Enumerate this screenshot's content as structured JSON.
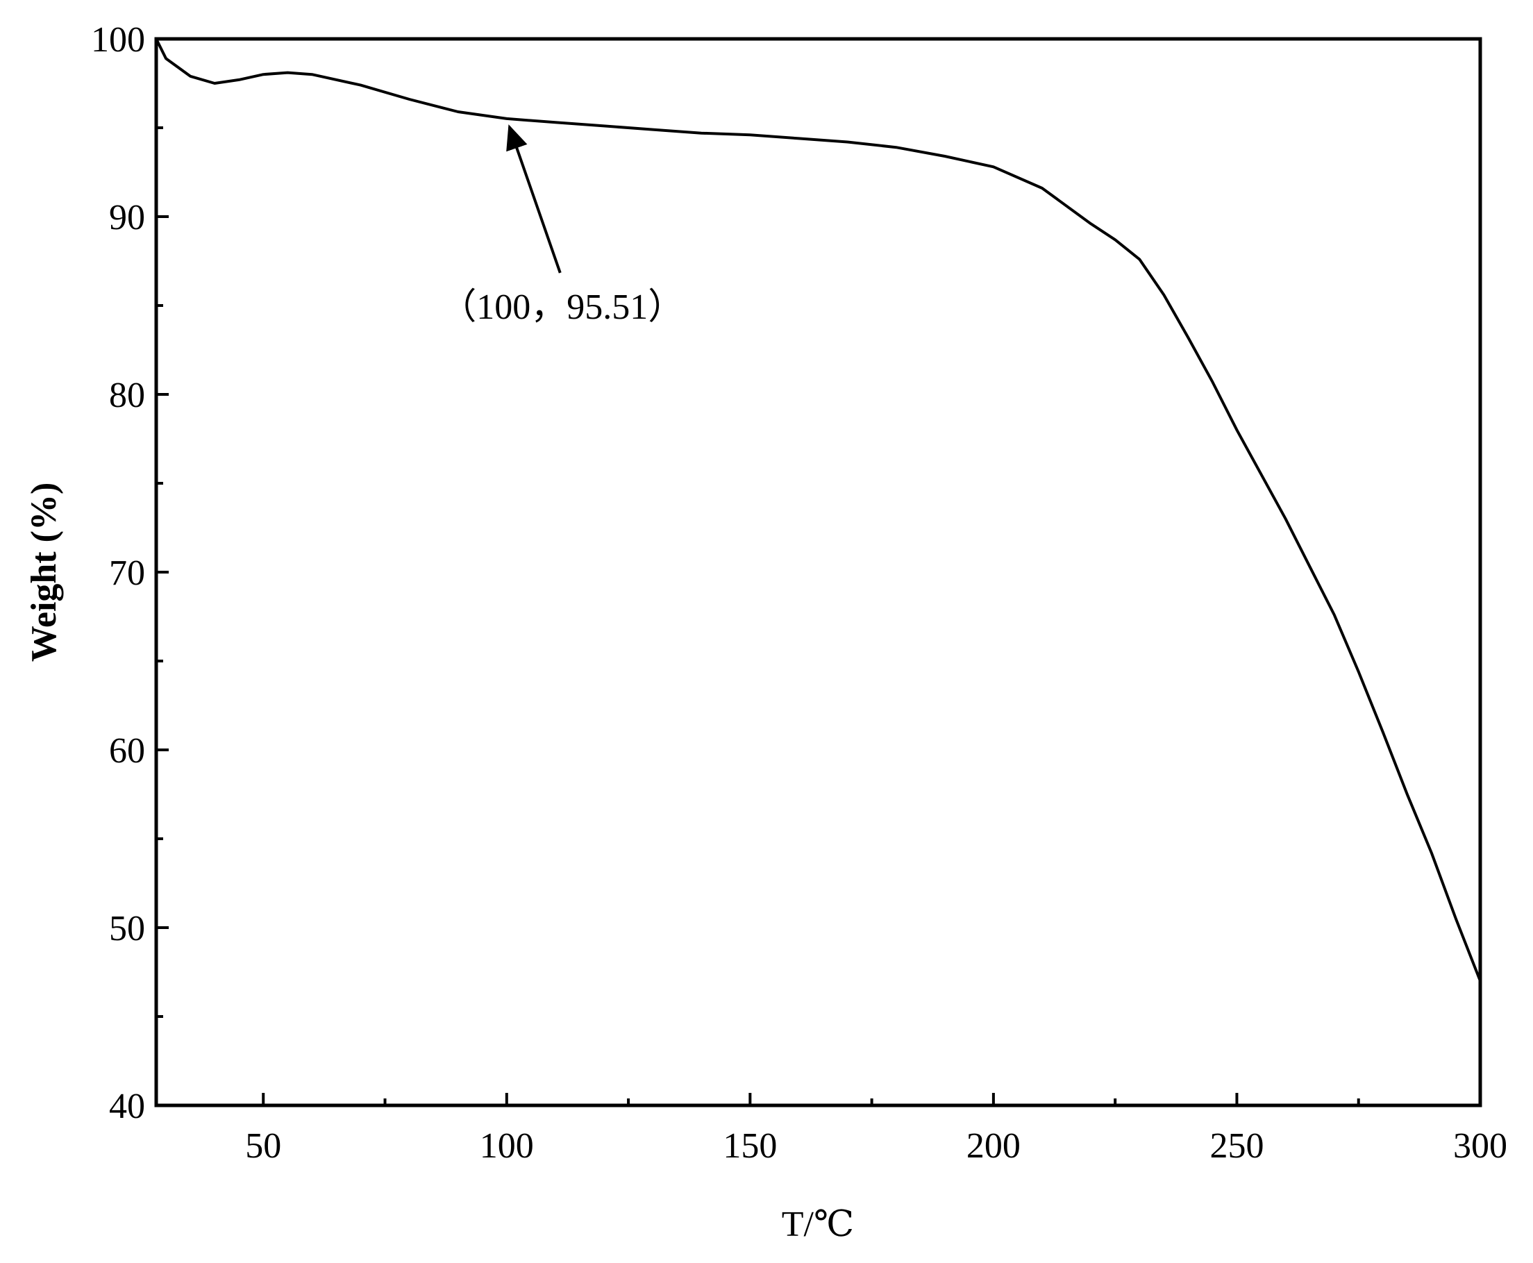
{
  "chart_data": {
    "type": "line",
    "x_label": "T/℃",
    "y_label": "Weight (%)",
    "xlim": [
      28,
      300
    ],
    "ylim": [
      40,
      100
    ],
    "xticks": [
      50,
      100,
      150,
      200,
      250,
      300
    ],
    "xticks_minor": [
      75,
      125,
      175,
      225,
      275
    ],
    "yticks": [
      40,
      50,
      60,
      70,
      80,
      90,
      100
    ],
    "yticks_minor": [
      45,
      55,
      65,
      75,
      85,
      95
    ],
    "x": [
      28,
      30,
      35,
      40,
      45,
      50,
      55,
      60,
      70,
      80,
      90,
      100,
      110,
      120,
      130,
      140,
      150,
      160,
      170,
      180,
      190,
      200,
      210,
      220,
      225,
      230,
      235,
      240,
      245,
      250,
      255,
      260,
      265,
      270,
      275,
      280,
      285,
      290,
      295,
      300
    ],
    "series": [
      {
        "color": "#000000",
        "values": [
          100,
          98.9,
          97.9,
          97.5,
          97.7,
          98.0,
          98.1,
          98.0,
          97.4,
          96.6,
          95.9,
          95.51,
          95.3,
          95.1,
          94.9,
          94.7,
          94.6,
          94.4,
          94.2,
          93.9,
          93.4,
          92.8,
          91.6,
          89.6,
          88.7,
          87.6,
          85.6,
          83.2,
          80.7,
          78.0,
          75.5,
          73.0,
          70.3,
          67.6,
          64.4,
          61.0,
          57.5,
          54.2,
          50.5,
          47.0
        ]
      }
    ],
    "annotation": {
      "text": "（100，95.51）",
      "x": 100,
      "y": 95.51
    }
  }
}
